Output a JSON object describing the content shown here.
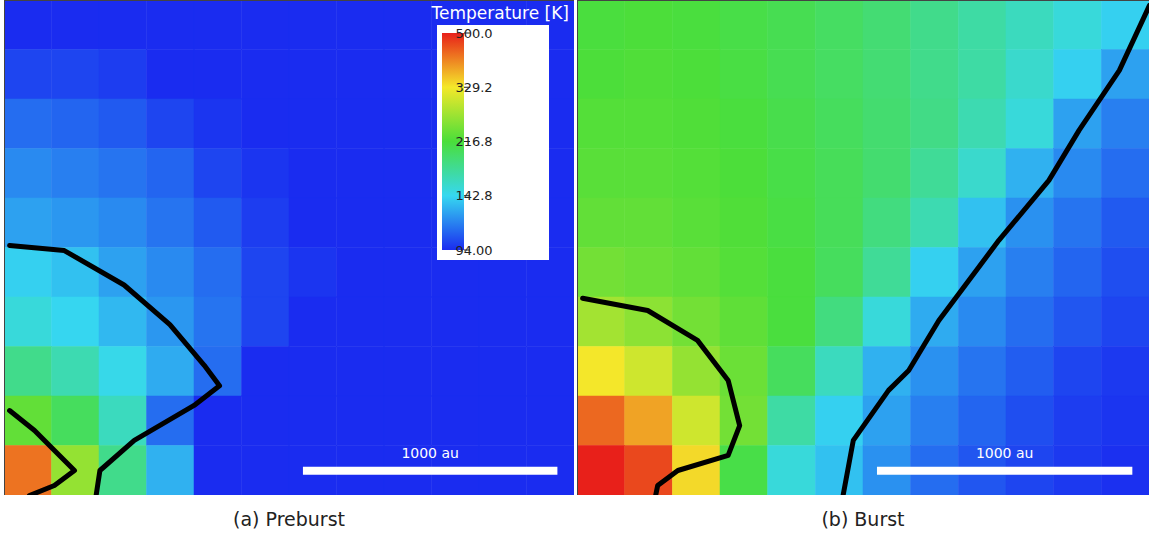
{
  "chart_data": [
    {
      "type": "heatmap",
      "title": "(a) Preburst",
      "tick_labels": false,
      "xlim": [
        0,
        2240
      ],
      "ylim": [
        0,
        1940
      ],
      "cells": [
        [
          94,
          94,
          94,
          94,
          94,
          94,
          94,
          94,
          94,
          94,
          94,
          94
        ],
        [
          100,
          100,
          98,
          94,
          94,
          94,
          94,
          94,
          94,
          94,
          94,
          94
        ],
        [
          110,
          108,
          105,
          100,
          96,
          94,
          94,
          94,
          94,
          94,
          94,
          94
        ],
        [
          118,
          115,
          112,
          108,
          100,
          96,
          94,
          94,
          94,
          94,
          94,
          94
        ],
        [
          125,
          122,
          118,
          112,
          105,
          98,
          94,
          94,
          94,
          94,
          94,
          94
        ],
        [
          140,
          135,
          125,
          118,
          110,
          100,
          96,
          94,
          94,
          94,
          94,
          94
        ],
        [
          150,
          142,
          132,
          122,
          112,
          100,
          94,
          94,
          94,
          94,
          94,
          94
        ],
        [
          180,
          165,
          145,
          128,
          110,
          94,
          94,
          94,
          94,
          94,
          94,
          94
        ],
        [
          230,
          200,
          160,
          110,
          94,
          94,
          94,
          94,
          94,
          94,
          94,
          94
        ],
        [
          420,
          260,
          180,
          130,
          94,
          94,
          94,
          94,
          94,
          94,
          94,
          94
        ]
      ],
      "contours": [
        [
          [
            20,
            980
          ],
          [
            235,
            960
          ],
          [
            470,
            825
          ],
          [
            650,
            670
          ],
          [
            785,
            510
          ],
          [
            845,
            430
          ],
          [
            745,
            353
          ],
          [
            510,
            216
          ],
          [
            375,
            98
          ],
          [
            360,
            0
          ]
        ],
        [
          [
            20,
            333
          ],
          [
            118,
            255
          ],
          [
            216,
            157
          ],
          [
            275,
            98
          ],
          [
            196,
            39
          ],
          [
            98,
            0
          ]
        ]
      ],
      "scale_bar": {
        "length": 1000,
        "label": "1000 au"
      },
      "colorbar": {
        "title": "Temperature [K]",
        "range": [
          94,
          500
        ],
        "log": true,
        "ticks": [
          {
            "value": 94,
            "label": "94.00"
          },
          142.8,
          216.8,
          329.2,
          {
            "value": 500,
            "label": "500.0"
          }
        ]
      }
    },
    {
      "type": "heatmap",
      "title": "(b) Burst",
      "tick_labels": false,
      "xlim": [
        0,
        2240
      ],
      "ylim": [
        0,
        1940
      ],
      "cells": [
        [
          215,
          218,
          215,
          210,
          205,
          198,
          190,
          180,
          170,
          160,
          150,
          140
        ],
        [
          218,
          220,
          218,
          212,
          205,
          198,
          190,
          180,
          170,
          155,
          140,
          125
        ],
        [
          222,
          222,
          220,
          215,
          208,
          200,
          192,
          182,
          165,
          150,
          125,
          115
        ],
        [
          225,
          225,
          222,
          218,
          210,
          202,
          192,
          175,
          155,
          130,
          118,
          110
        ],
        [
          230,
          230,
          225,
          220,
          212,
          202,
          185,
          165,
          135,
          120,
          112,
          105
        ],
        [
          240,
          235,
          230,
          222,
          215,
          200,
          175,
          140,
          125,
          115,
          108,
          102
        ],
        [
          270,
          255,
          240,
          228,
          215,
          185,
          150,
          128,
          118,
          110,
          104,
          100
        ],
        [
          330,
          300,
          260,
          235,
          200,
          160,
          130,
          120,
          112,
          106,
          100,
          97
        ],
        [
          430,
          380,
          300,
          240,
          170,
          140,
          125,
          115,
          108,
          102,
          98,
          96
        ],
        [
          500,
          460,
          340,
          210,
          150,
          135,
          120,
          110,
          104,
          100,
          97,
          95
        ]
      ],
      "contours": [
        [
          [
            20,
            773
          ],
          [
            275,
            725
          ],
          [
            470,
            608
          ],
          [
            590,
            451
          ],
          [
            635,
            274
          ],
          [
            590,
            157
          ],
          [
            393,
            98
          ],
          [
            314,
            39
          ],
          [
            306,
            0
          ]
        ],
        [
          [
            1040,
            0
          ],
          [
            1080,
            216
          ],
          [
            1218,
            412
          ],
          [
            1297,
            490
          ],
          [
            1415,
            686
          ],
          [
            1650,
            1000
          ],
          [
            1846,
            1235
          ],
          [
            1964,
            1431
          ],
          [
            2122,
            1666
          ],
          [
            2240,
            1921
          ]
        ]
      ],
      "scale_bar": {
        "length": 1000,
        "label": "1000 au"
      }
    }
  ]
}
